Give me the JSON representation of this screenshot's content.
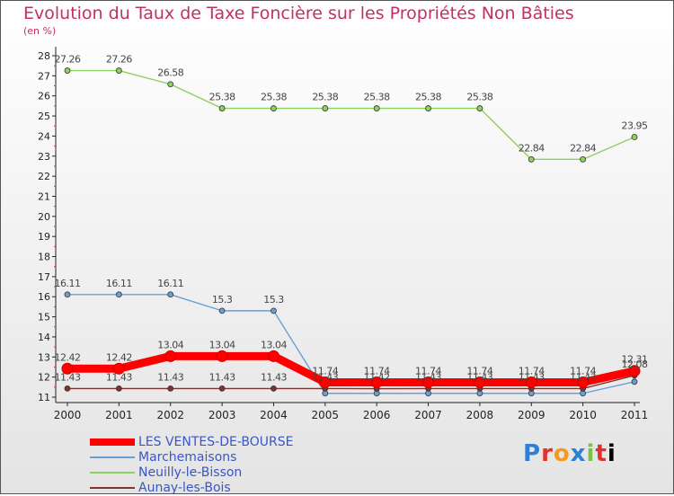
{
  "chart_data": {
    "type": "line",
    "title": "Evolution du Taux de Taxe Foncière sur les Propriétés Non Bâties",
    "subtitle": "(en %)",
    "xlabel": "",
    "ylabel": "",
    "x": [
      "2000",
      "2001",
      "2002",
      "2003",
      "2004",
      "2005",
      "2006",
      "2007",
      "2008",
      "2009",
      "2010",
      "2011"
    ],
    "ylim": [
      11,
      28
    ],
    "yticks": [
      11,
      12,
      13,
      14,
      15,
      16,
      17,
      18,
      19,
      20,
      21,
      22,
      23,
      24,
      25,
      26,
      27,
      28
    ],
    "grid": false,
    "legend_position": "bottom-left",
    "series": [
      {
        "name": "LES VENTES-DE-BOURSE",
        "color": "#ff0000",
        "values": [
          12.42,
          12.42,
          13.04,
          13.04,
          13.04,
          11.74,
          11.74,
          11.74,
          11.74,
          11.74,
          11.74,
          12.31
        ],
        "labels": [
          "12.42",
          "12.42",
          "13.04",
          "13.04",
          "13.04",
          "11.74",
          "11.74",
          "11.74",
          "11.74",
          "11.74",
          "11.74",
          "12.31"
        ]
      },
      {
        "name": "Marchemaisons",
        "color": "#6a9fd4",
        "values": [
          16.11,
          16.11,
          16.11,
          15.3,
          15.3,
          11.19,
          11.19,
          11.19,
          11.19,
          11.19,
          11.19,
          11.77
        ],
        "labels": [
          "16.11",
          "16.11",
          "16.11",
          "15.3",
          "15.3",
          "",
          "",
          "",
          "",
          "",
          "",
          ""
        ]
      },
      {
        "name": "Neuilly-le-Bisson",
        "color": "#8fd061",
        "values": [
          27.26,
          27.26,
          26.58,
          25.38,
          25.38,
          25.38,
          25.38,
          25.38,
          25.38,
          22.84,
          22.84,
          23.95
        ],
        "labels": [
          "27.26",
          "27.26",
          "26.58",
          "25.38",
          "25.38",
          "25.38",
          "25.38",
          "25.38",
          "25.38",
          "22.84",
          "22.84",
          "23.95"
        ]
      },
      {
        "name": "Aunay-les-Bois",
        "color": "#7e3333",
        "values": [
          11.43,
          11.43,
          11.43,
          11.43,
          11.43,
          11.43,
          11.42,
          11.43,
          11.43,
          11.43,
          11.43,
          12.08
        ],
        "labels": [
          "11.43",
          "11.43",
          "11.43",
          "11.43",
          "11.43",
          "11.43",
          "11.42",
          "11.43",
          "11.43",
          "11.43",
          "11.43",
          "12.08"
        ]
      }
    ]
  },
  "logo": {
    "letters": [
      "P",
      "r",
      "o",
      "x",
      "i",
      "t",
      "i"
    ]
  }
}
